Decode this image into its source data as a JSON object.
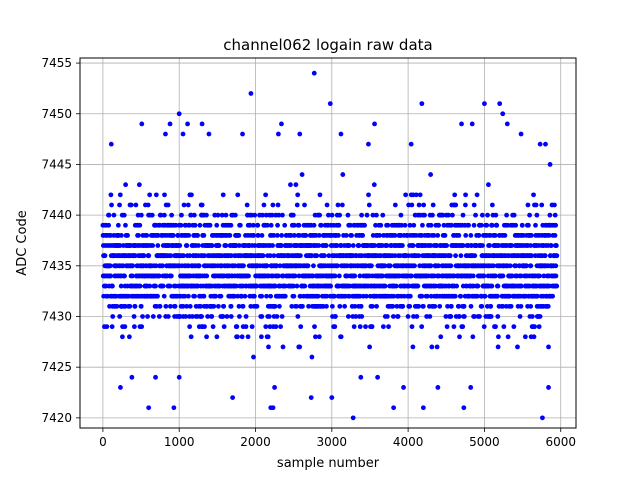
{
  "chart_data": {
    "type": "scatter",
    "title": "channel062 logain raw data",
    "xlabel": "sample number",
    "ylabel": "ADC Code",
    "xlim": [
      -300,
      6200
    ],
    "ylim": [
      7419,
      7455.5
    ],
    "xticks": [
      0,
      1000,
      2000,
      3000,
      4000,
      5000,
      6000
    ],
    "yticks": [
      7420,
      7425,
      7430,
      7435,
      7440,
      7445,
      7450,
      7455
    ],
    "grid": true,
    "series": [
      {
        "color": "#0000ff",
        "marker": "circle",
        "n_samples": 6000,
        "x_range": [
          0,
          5950
        ],
        "dense_band": [
          7427,
          7443
        ],
        "outliers": [
          {
            "x": 110,
            "y": 7447
          },
          {
            "x": 230,
            "y": 7423
          },
          {
            "x": 380,
            "y": 7424
          },
          {
            "x": 510,
            "y": 7449
          },
          {
            "x": 600,
            "y": 7421
          },
          {
            "x": 690,
            "y": 7424
          },
          {
            "x": 820,
            "y": 7448
          },
          {
            "x": 880,
            "y": 7449
          },
          {
            "x": 930,
            "y": 7421
          },
          {
            "x": 1000,
            "y": 7450
          },
          {
            "x": 1000,
            "y": 7424
          },
          {
            "x": 1050,
            "y": 7448
          },
          {
            "x": 1110,
            "y": 7449
          },
          {
            "x": 1300,
            "y": 7449
          },
          {
            "x": 1390,
            "y": 7448
          },
          {
            "x": 1700,
            "y": 7422
          },
          {
            "x": 1830,
            "y": 7448
          },
          {
            "x": 1940,
            "y": 7452
          },
          {
            "x": 2200,
            "y": 7421
          },
          {
            "x": 2230,
            "y": 7421
          },
          {
            "x": 2250,
            "y": 7423
          },
          {
            "x": 2300,
            "y": 7448
          },
          {
            "x": 2340,
            "y": 7449
          },
          {
            "x": 2580,
            "y": 7448
          },
          {
            "x": 2730,
            "y": 7422
          },
          {
            "x": 2770,
            "y": 7454
          },
          {
            "x": 2980,
            "y": 7451
          },
          {
            "x": 3000,
            "y": 7422
          },
          {
            "x": 3120,
            "y": 7448
          },
          {
            "x": 3280,
            "y": 7420
          },
          {
            "x": 3380,
            "y": 7424
          },
          {
            "x": 3480,
            "y": 7447
          },
          {
            "x": 3560,
            "y": 7449
          },
          {
            "x": 3600,
            "y": 7424
          },
          {
            "x": 3810,
            "y": 7421
          },
          {
            "x": 3940,
            "y": 7423
          },
          {
            "x": 4040,
            "y": 7447
          },
          {
            "x": 4180,
            "y": 7451
          },
          {
            "x": 4200,
            "y": 7421
          },
          {
            "x": 4390,
            "y": 7423
          },
          {
            "x": 4700,
            "y": 7449
          },
          {
            "x": 4730,
            "y": 7421
          },
          {
            "x": 4820,
            "y": 7423
          },
          {
            "x": 4840,
            "y": 7449
          },
          {
            "x": 5000,
            "y": 7451
          },
          {
            "x": 5200,
            "y": 7451
          },
          {
            "x": 5240,
            "y": 7450
          },
          {
            "x": 5300,
            "y": 7449
          },
          {
            "x": 5480,
            "y": 7448
          },
          {
            "x": 5730,
            "y": 7447
          },
          {
            "x": 5760,
            "y": 7420
          },
          {
            "x": 5800,
            "y": 7447
          },
          {
            "x": 5840,
            "y": 7423
          },
          {
            "x": 5860,
            "y": 7445
          }
        ]
      }
    ]
  }
}
